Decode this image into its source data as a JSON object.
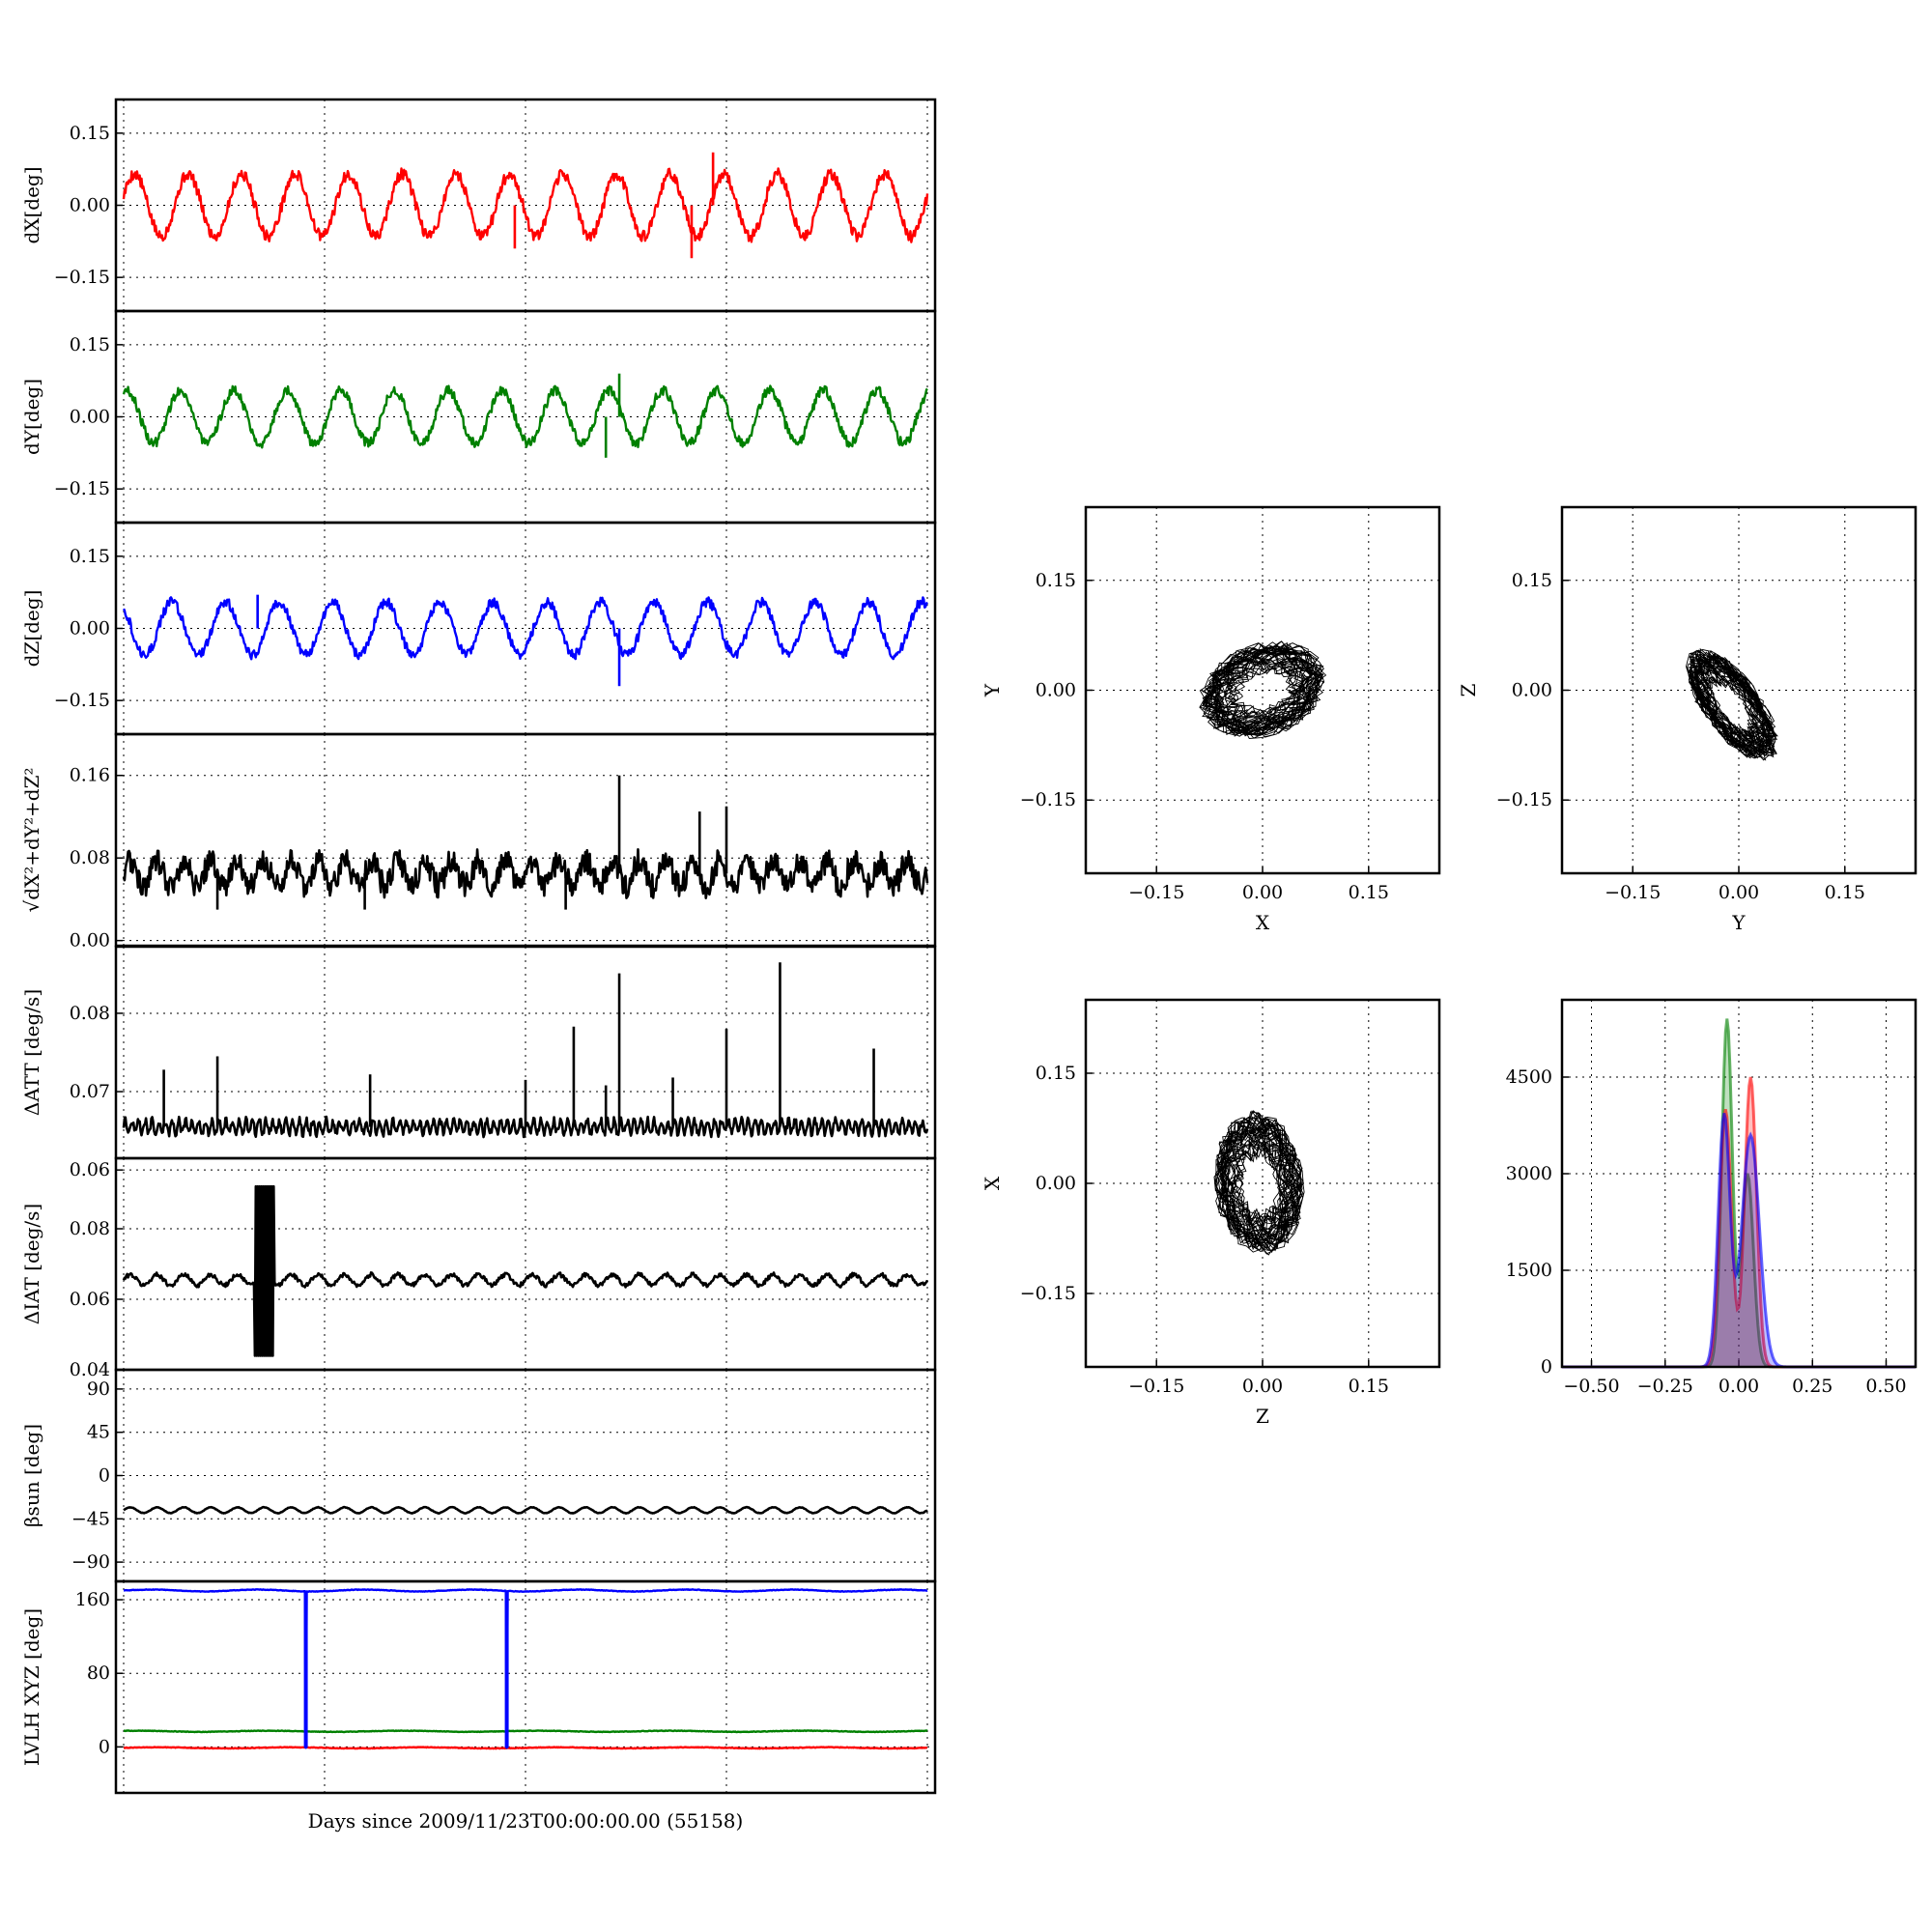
{
  "figure": {
    "xlabel": "Days since 2009/11/23T00:00:00.00 (55158)",
    "colors": {
      "x": "#ff0000",
      "y": "#008000",
      "z": "#0000ff",
      "other": "#000000"
    }
  },
  "chart_data": [
    {
      "id": "dx",
      "type": "line",
      "ylabel": "dX[deg]",
      "ylim": [
        -0.22,
        0.22
      ],
      "yticks": [
        0.15,
        0.0,
        -0.15
      ],
      "yticklabels": [
        "0.15",
        "0.00",
        "−0.15"
      ],
      "xlim": [
        0,
        30
      ],
      "grid": true,
      "series": [
        {
          "color": "#ff0000",
          "mean": 0.0,
          "amp": 0.065,
          "period": 2.0,
          "phase": 0.3,
          "noise": 0.012,
          "spikes": [
            [
              14.6,
              -0.09
            ],
            [
              21.2,
              -0.11
            ],
            [
              22.0,
              0.11
            ]
          ]
        }
      ]
    },
    {
      "id": "dy",
      "type": "line",
      "ylabel": "dY[deg]",
      "ylim": [
        -0.22,
        0.22
      ],
      "yticks": [
        0.15,
        0.0,
        -0.15
      ],
      "yticklabels": [
        "0.15",
        "0.00",
        "−0.15"
      ],
      "xlim": [
        0,
        30
      ],
      "grid": true,
      "series": [
        {
          "color": "#008000",
          "mean": 0.0,
          "amp": 0.055,
          "period": 2.0,
          "phase": 1.2,
          "noise": 0.01,
          "spikes": [
            [
              18.0,
              -0.085
            ],
            [
              18.5,
              0.09
            ]
          ]
        }
      ]
    },
    {
      "id": "dz",
      "type": "line",
      "ylabel": "dZ[deg]",
      "ylim": [
        -0.22,
        0.22
      ],
      "yticks": [
        0.15,
        0.0,
        -0.15
      ],
      "yticklabels": [
        "0.15",
        "0.00",
        "−0.15"
      ],
      "xlim": [
        0,
        30
      ],
      "grid": true,
      "series": [
        {
          "color": "#0000ff",
          "mean": 0.0,
          "amp": 0.055,
          "period": 2.0,
          "phase": 2.2,
          "noise": 0.01,
          "spikes": [
            [
              18.5,
              -0.12
            ],
            [
              5.0,
              0.07
            ]
          ]
        }
      ]
    },
    {
      "id": "dr",
      "type": "line",
      "ylabel": "√dX²+dY²+dZ²",
      "ylim": [
        -0.005,
        0.2
      ],
      "yticks": [
        0.16,
        0.08,
        0.0
      ],
      "yticklabels": [
        "0.16",
        "0.08",
        "0.00"
      ],
      "xlim": [
        0,
        30
      ],
      "grid": true,
      "series": [
        {
          "color": "#000000",
          "mean": 0.065,
          "amp": 0.012,
          "period": 1.0,
          "phase": 0.0,
          "noise": 0.012,
          "spikes": [
            [
              18.5,
              0.16
            ],
            [
              21.5,
              0.125
            ],
            [
              22.5,
              0.13
            ],
            [
              3.5,
              0.03
            ],
            [
              9.0,
              0.03
            ],
            [
              16.5,
              0.03
            ]
          ]
        }
      ]
    },
    {
      "id": "datt",
      "type": "line",
      "ylabel": "ΔATT [deg/s]",
      "ylim": [
        0.0615,
        0.0885
      ],
      "yticks": [
        0.08,
        0.07,
        0.06
      ],
      "yticklabels": [
        "0.08",
        "0.07",
        "0.06"
      ],
      "xlim": [
        0,
        30
      ],
      "grid": true,
      "series": [
        {
          "color": "#000000",
          "mean": 0.0655,
          "amp": 0.0008,
          "period": 0.25,
          "phase": 0.0,
          "noise": 0.0005,
          "spikes": [
            [
              1.5,
              0.0728
            ],
            [
              3.5,
              0.0745
            ],
            [
              9.2,
              0.0722
            ],
            [
              15.0,
              0.0715
            ],
            [
              16.8,
              0.0783
            ],
            [
              18.0,
              0.0708
            ],
            [
              18.5,
              0.0851
            ],
            [
              20.5,
              0.0718
            ],
            [
              22.5,
              0.078
            ],
            [
              24.5,
              0.0865
            ],
            [
              28.0,
              0.0755
            ]
          ]
        }
      ]
    },
    {
      "id": "diat",
      "type": "line",
      "ylabel": "ΔIAT [deg/s]",
      "ylim": [
        0.04,
        0.1
      ],
      "yticks": [
        0.08,
        0.06,
        0.04
      ],
      "yticklabels": [
        "0.08",
        "0.06",
        "0.04"
      ],
      "xlim": [
        0,
        30
      ],
      "grid": true,
      "series": [
        {
          "color": "#000000",
          "mean": 0.0655,
          "amp": 0.0015,
          "period": 1.0,
          "phase": 0.0,
          "noise": 0.0006,
          "burst": [
            4.9,
            5.6,
            0.044,
            0.092
          ]
        }
      ]
    },
    {
      "id": "beta",
      "type": "line",
      "ylabel": "βsun [deg]",
      "ylim": [
        -110,
        110
      ],
      "yticks": [
        90,
        45,
        0,
        -45,
        -90
      ],
      "yticklabels": [
        "90",
        "45",
        "0",
        "−45",
        "−90"
      ],
      "xlim": [
        0,
        30
      ],
      "grid": true,
      "series": [
        {
          "color": "#000000",
          "mean": -36,
          "amp": 3.0,
          "period": 1.0,
          "phase": 0.0,
          "noise": 0.3,
          "spikes": []
        }
      ]
    },
    {
      "id": "lvlh",
      "type": "line",
      "ylabel": "LVLH XYZ [deg]",
      "ylim": [
        -50,
        180
      ],
      "yticks": [
        160,
        80,
        0
      ],
      "yticklabels": [
        "160",
        "80",
        "0"
      ],
      "xlim": [
        0,
        30
      ],
      "grid": true,
      "series": [
        {
          "color": "#ff0000",
          "mean": -1,
          "amp": 0.6,
          "period": 5.0,
          "phase": 0.0,
          "noise": 0.3,
          "spikes": []
        },
        {
          "color": "#008000",
          "mean": 17,
          "amp": 0.6,
          "period": 5.0,
          "phase": 1.0,
          "noise": 0.3,
          "spikes": []
        },
        {
          "color": "#0000ff",
          "mean": 170,
          "amp": 1.0,
          "period": 4.0,
          "phase": 0.0,
          "noise": 0.3,
          "drops": [
            6.8,
            14.3
          ],
          "drop_to": -1,
          "spikes": []
        }
      ]
    },
    {
      "id": "xy",
      "type": "scatter",
      "xlabel": "X",
      "ylabel": "Y",
      "xlim": [
        -0.25,
        0.25
      ],
      "ylim": [
        -0.25,
        0.25
      ],
      "xticks": [
        -0.15,
        0.0,
        0.15
      ],
      "yticks": [
        0.15,
        0.0,
        -0.15
      ],
      "ticklabels": {
        "-0.15": "−0.15",
        "0": "0.00",
        "0.15": "0.15"
      },
      "grid": true,
      "cloud": {
        "cx": 0.0,
        "cy": 0.0,
        "rx": 0.08,
        "ry": 0.055,
        "tilt": 0.3
      }
    },
    {
      "id": "yz",
      "type": "scatter",
      "xlabel": "Y",
      "ylabel": "Z",
      "xlim": [
        -0.25,
        0.25
      ],
      "ylim": [
        -0.25,
        0.25
      ],
      "xticks": [
        -0.15,
        0.0,
        0.15
      ],
      "yticks": [
        0.15,
        0.0,
        -0.15
      ],
      "ticklabels": {
        "-0.15": "−0.15",
        "0": "0.00",
        "0.15": "0.15"
      },
      "grid": true,
      "cloud": {
        "cx": -0.01,
        "cy": -0.02,
        "rx": 0.08,
        "ry": 0.035,
        "tilt": -0.9
      }
    },
    {
      "id": "zx",
      "type": "scatter",
      "xlabel": "Z",
      "ylabel": "X",
      "xlim": [
        -0.25,
        0.25
      ],
      "ylim": [
        -0.25,
        0.25
      ],
      "xticks": [
        -0.15,
        0.0,
        0.15
      ],
      "yticks": [
        0.15,
        0.0,
        -0.15
      ],
      "ticklabels": {
        "-0.15": "−0.15",
        "0": "0.00",
        "0.15": "0.15"
      },
      "grid": true,
      "cloud": {
        "cx": -0.005,
        "cy": 0.0,
        "rx": 0.055,
        "ry": 0.085,
        "tilt": 0.1
      }
    },
    {
      "id": "hist",
      "type": "area",
      "xlim": [
        -0.6,
        0.6
      ],
      "ylim": [
        0,
        5700
      ],
      "xticks": [
        -0.5,
        -0.25,
        0.0,
        0.25,
        0.5
      ],
      "xticklabels": [
        "−0.50",
        "−0.25",
        "0.00",
        "0.25",
        "0.50"
      ],
      "yticks": [
        4500,
        3000,
        1500,
        0
      ],
      "yticklabels": [
        "4500",
        "3000",
        "1500",
        "0"
      ],
      "grid": true,
      "series": [
        {
          "color": "#008000",
          "peaks": [
            [
              -0.04,
              5400,
              0.018
            ],
            [
              0.03,
              3000,
              0.02
            ]
          ]
        },
        {
          "color": "#ff0000",
          "peaks": [
            [
              -0.045,
              4000,
              0.02
            ],
            [
              0.04,
              4500,
              0.02
            ]
          ]
        },
        {
          "color": "#0000ff",
          "peaks": [
            [
              -0.05,
              3900,
              0.02
            ],
            [
              0.04,
              3600,
              0.03
            ]
          ]
        }
      ]
    }
  ]
}
